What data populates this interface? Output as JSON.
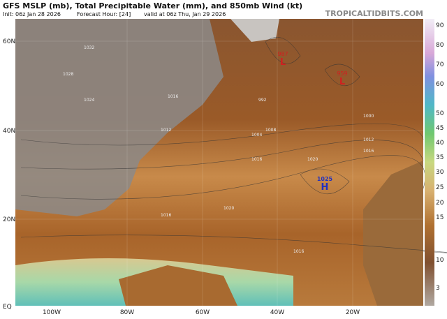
{
  "header": {
    "title": "GFS MSLP (mb), Total Precipitable Water (mm), and 850mb Wind (kt)",
    "init": "Init: 06z Jan 28 2026",
    "forecast_hour": "Forecast Hour: [24]",
    "valid": "valid at 06z Thu, Jan 29 2026",
    "source": "TROPICALTIDBITS.COM"
  },
  "map": {
    "lat_labels": [
      "60N",
      "40N",
      "20N",
      "EQ"
    ],
    "lon_labels": [
      "100W",
      "80W",
      "60W",
      "40W",
      "20W"
    ],
    "centers": [
      {
        "value": "987",
        "symbol": "L"
      },
      {
        "value": "959",
        "symbol": "L"
      },
      {
        "value": "1025",
        "symbol": "H"
      }
    ],
    "isobar_labels": [
      "1032",
      "1028",
      "1024",
      "1016",
      "1012",
      "1008",
      "1004",
      "1000",
      "992",
      "1016",
      "1020",
      "1016",
      "1012",
      "1016",
      "1020",
      "1016"
    ]
  },
  "colorbar": {
    "ticks": [
      "90",
      "80",
      "70",
      "60",
      "50",
      "45",
      "40",
      "35",
      "30",
      "25",
      "20",
      "15",
      "10",
      "3"
    ]
  }
}
